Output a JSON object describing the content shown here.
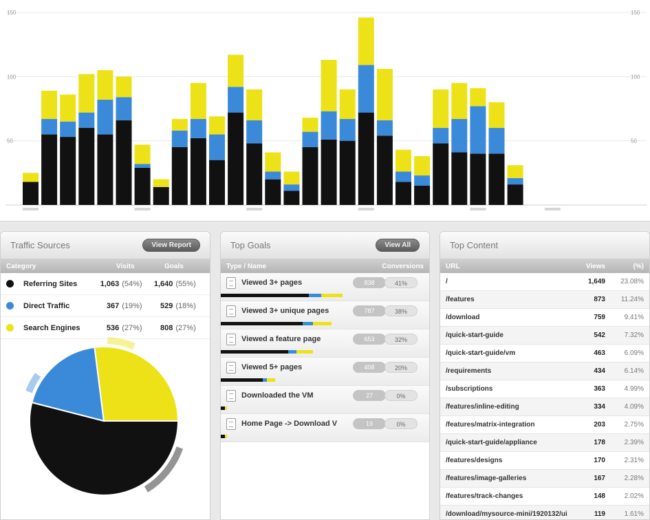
{
  "chart_data": {
    "type": "bar",
    "stacked": true,
    "categories": [
      "1",
      "2",
      "3",
      "4",
      "5",
      "6",
      "7",
      "8",
      "9",
      "10",
      "11",
      "12",
      "13",
      "14",
      "15",
      "16",
      "17",
      "18",
      "19",
      "20",
      "21",
      "22",
      "23",
      "24",
      "25",
      "26",
      "27",
      "28",
      "29"
    ],
    "series": [
      {
        "color": "#111111",
        "values": [
          18,
          55,
          53,
          60,
          55,
          66,
          29,
          14,
          45,
          52,
          35,
          72,
          48,
          20,
          11,
          45,
          51,
          50,
          72,
          54,
          18,
          15,
          48,
          41,
          40,
          40,
          16,
          null,
          null
        ]
      },
      {
        "color": "#3b8ad9",
        "values": [
          0,
          12,
          12,
          12,
          27,
          18,
          3,
          0,
          13,
          15,
          20,
          20,
          18,
          6,
          5,
          12,
          22,
          17,
          37,
          12,
          8,
          8,
          12,
          26,
          37,
          20,
          5,
          null,
          null
        ]
      },
      {
        "color": "#ede217",
        "values": [
          7,
          22,
          21,
          30,
          23,
          16,
          15,
          6,
          9,
          28,
          14,
          25,
          24,
          15,
          10,
          11,
          40,
          23,
          37,
          40,
          17,
          15,
          30,
          28,
          14,
          20,
          10,
          null,
          null
        ]
      }
    ],
    "ylim": [
      0,
      150
    ],
    "yticks": [
      50,
      100,
      150
    ],
    "grid": true
  },
  "traffic_sources": {
    "title": "Traffic Sources",
    "button": "View Report",
    "columns": [
      "Category",
      "Visits",
      "Goals"
    ],
    "rows": [
      {
        "name": "Referring Sites",
        "color": "#111111",
        "visits": "1,063",
        "visits_pct": "(54%)",
        "goals": "1,640",
        "goals_pct": "(55%)"
      },
      {
        "name": "Direct Traffic",
        "color": "#3b8ad9",
        "visits": "367",
        "visits_pct": "(19%)",
        "goals": "529",
        "goals_pct": "(18%)"
      },
      {
        "name": "Search Engines",
        "color": "#ede217",
        "visits": "536",
        "visits_pct": "(27%)",
        "goals": "808",
        "goals_pct": "(27%)"
      }
    ],
    "pie": [
      {
        "color": "#111111",
        "value": 54
      },
      {
        "color": "#3b8ad9",
        "value": 19
      },
      {
        "color": "#ede217",
        "value": 27
      }
    ]
  },
  "top_goals": {
    "title": "Top Goals",
    "button": "View All",
    "columns": [
      "Type / Name",
      "Conversions"
    ],
    "rows": [
      {
        "name": "Viewed 3+ pages",
        "count": "838",
        "pct": "41%",
        "bar": [
          0.42,
          0.06,
          0.1
        ]
      },
      {
        "name": "Viewed 3+ unique pages",
        "count": "787",
        "pct": "38%",
        "bar": [
          0.39,
          0.05,
          0.09
        ]
      },
      {
        "name": "Viewed a feature page",
        "count": "653",
        "pct": "32%",
        "bar": [
          0.32,
          0.04,
          0.08
        ]
      },
      {
        "name": "Viewed 5+ pages",
        "count": "408",
        "pct": "20%",
        "bar": [
          0.2,
          0.02,
          0.04
        ]
      },
      {
        "name": "Downloaded the VM",
        "count": "27",
        "pct": "0%",
        "bar": [
          0.02,
          0.0,
          0.01
        ]
      },
      {
        "name": "Home Page -> Download V",
        "count": "19",
        "pct": "0%",
        "bar": [
          0.02,
          0.0,
          0.01
        ]
      }
    ]
  },
  "top_content": {
    "title": "Top Content",
    "columns": [
      "URL",
      "Views",
      "(%)"
    ],
    "rows": [
      {
        "url": "/",
        "views": "1,649",
        "pct": "23.08%"
      },
      {
        "url": "/features",
        "views": "873",
        "pct": "11.24%"
      },
      {
        "url": "/download",
        "views": "759",
        "pct": "9.41%"
      },
      {
        "url": "/quick-start-guide",
        "views": "542",
        "pct": "7.32%"
      },
      {
        "url": "/quick-start-guide/vm",
        "views": "463",
        "pct": "6.09%"
      },
      {
        "url": "/requirements",
        "views": "434",
        "pct": "6.14%"
      },
      {
        "url": "/subscriptions",
        "views": "363",
        "pct": "4.99%"
      },
      {
        "url": "/features/inline-editing",
        "views": "334",
        "pct": "4.09%"
      },
      {
        "url": "/features/matrix-integration",
        "views": "203",
        "pct": "2.75%"
      },
      {
        "url": "/quick-start-guide/appliance",
        "views": "178",
        "pct": "2.39%"
      },
      {
        "url": "/features/designs",
        "views": "170",
        "pct": "2.31%"
      },
      {
        "url": "/features/image-galleries",
        "views": "167",
        "pct": "2.28%"
      },
      {
        "url": "/features/track-changes",
        "views": "148",
        "pct": "2.02%"
      },
      {
        "url": "/download/mysource-mini/1920132/ui",
        "views": "119",
        "pct": "1.61%"
      }
    ]
  }
}
